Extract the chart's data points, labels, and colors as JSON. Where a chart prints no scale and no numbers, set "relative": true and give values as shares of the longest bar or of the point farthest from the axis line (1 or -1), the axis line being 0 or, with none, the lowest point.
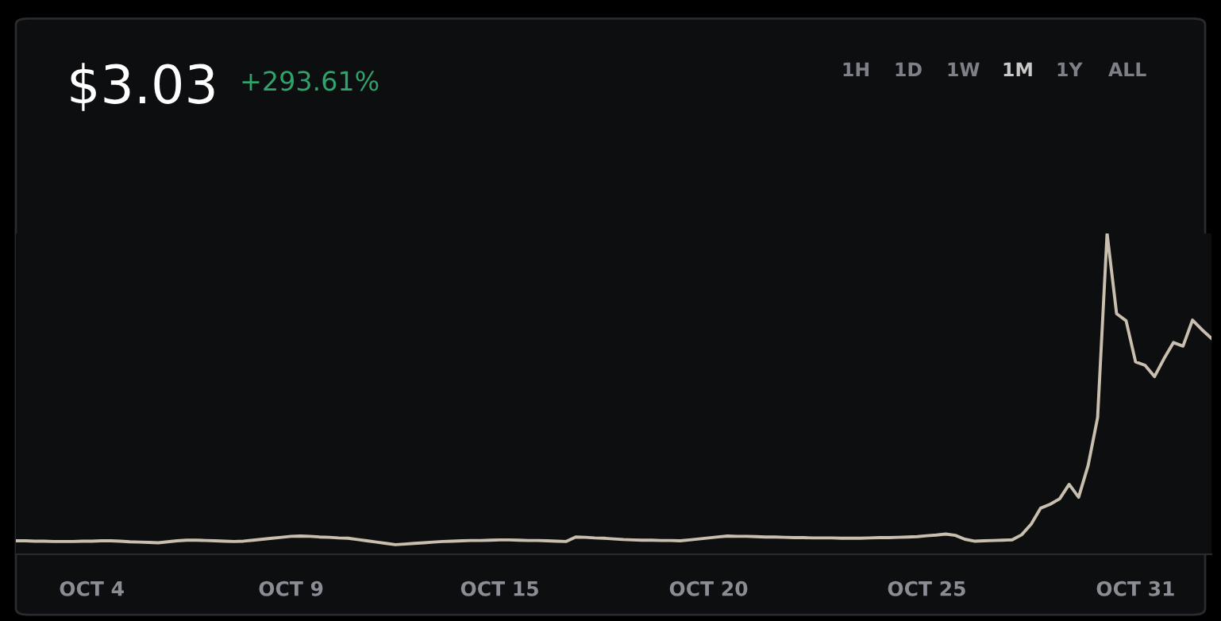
{
  "chart_data": {
    "type": "line",
    "title": "$3.03",
    "relative": true,
    "tick_labels": "x",
    "grid": false,
    "legend": false,
    "annotations": [
      "+293.61%",
      "1H",
      "1D",
      "1W",
      "1M",
      "1Y",
      "ALL"
    ],
    "categories": [
      null,
      null,
      null,
      null,
      null,
      null,
      null,
      null,
      "OCT 4",
      null,
      null,
      null,
      null,
      null,
      null,
      null,
      null,
      null,
      null,
      null,
      null,
      null,
      null,
      null,
      null,
      null,
      null,
      null,
      null,
      "OCT 9",
      null,
      null,
      null,
      null,
      null,
      null,
      null,
      null,
      null,
      null,
      null,
      null,
      null,
      null,
      null,
      null,
      null,
      null,
      null,
      null,
      null,
      "OCT 15",
      null,
      null,
      null,
      null,
      null,
      null,
      null,
      null,
      null,
      null,
      null,
      null,
      null,
      null,
      null,
      null,
      null,
      null,
      null,
      null,
      null,
      "OCT 20",
      null,
      null,
      null,
      null,
      null,
      null,
      null,
      null,
      null,
      null,
      null,
      null,
      null,
      null,
      null,
      null,
      null,
      null,
      null,
      null,
      null,
      null,
      "OCT 25",
      null,
      null,
      null,
      null,
      null,
      null,
      null,
      null,
      null,
      null,
      null,
      null,
      null,
      null,
      null,
      null,
      null,
      null,
      null,
      null,
      null,
      "OCT 31",
      null,
      null,
      null,
      null,
      null,
      null,
      null,
      null
    ],
    "series": [
      {
        "color": "#c9bfae",
        "values": [
          0.042,
          0.042,
          0.041,
          0.041,
          0.04,
          0.04,
          0.04,
          0.041,
          0.041,
          0.042,
          0.042,
          0.041,
          0.039,
          0.038,
          0.037,
          0.036,
          0.039,
          0.042,
          0.044,
          0.044,
          0.043,
          0.042,
          0.041,
          0.04,
          0.041,
          0.044,
          0.047,
          0.05,
          0.053,
          0.056,
          0.057,
          0.056,
          0.054,
          0.053,
          0.051,
          0.05,
          0.046,
          0.042,
          0.038,
          0.034,
          0.03,
          0.032,
          0.034,
          0.036,
          0.038,
          0.04,
          0.041,
          0.042,
          0.043,
          0.043,
          0.044,
          0.045,
          0.045,
          0.044,
          0.043,
          0.043,
          0.042,
          0.041,
          0.04,
          0.054,
          0.053,
          0.051,
          0.05,
          0.048,
          0.046,
          0.045,
          0.044,
          0.044,
          0.043,
          0.043,
          0.042,
          0.045,
          0.048,
          0.051,
          0.054,
          0.057,
          0.056,
          0.056,
          0.055,
          0.054,
          0.054,
          0.053,
          0.052,
          0.052,
          0.051,
          0.051,
          0.051,
          0.05,
          0.05,
          0.05,
          0.051,
          0.052,
          0.052,
          0.053,
          0.054,
          0.055,
          0.058,
          0.06,
          0.063,
          0.059,
          0.047,
          0.041,
          0.042,
          0.043,
          0.044,
          0.045,
          0.061,
          0.094,
          0.144,
          0.156,
          0.173,
          0.218,
          0.178,
          0.277,
          0.426,
          1.0,
          0.75,
          0.728,
          0.6,
          0.589,
          0.554,
          0.61,
          0.66,
          0.649,
          0.73,
          0.7,
          0.673
        ]
      }
    ]
  }
}
